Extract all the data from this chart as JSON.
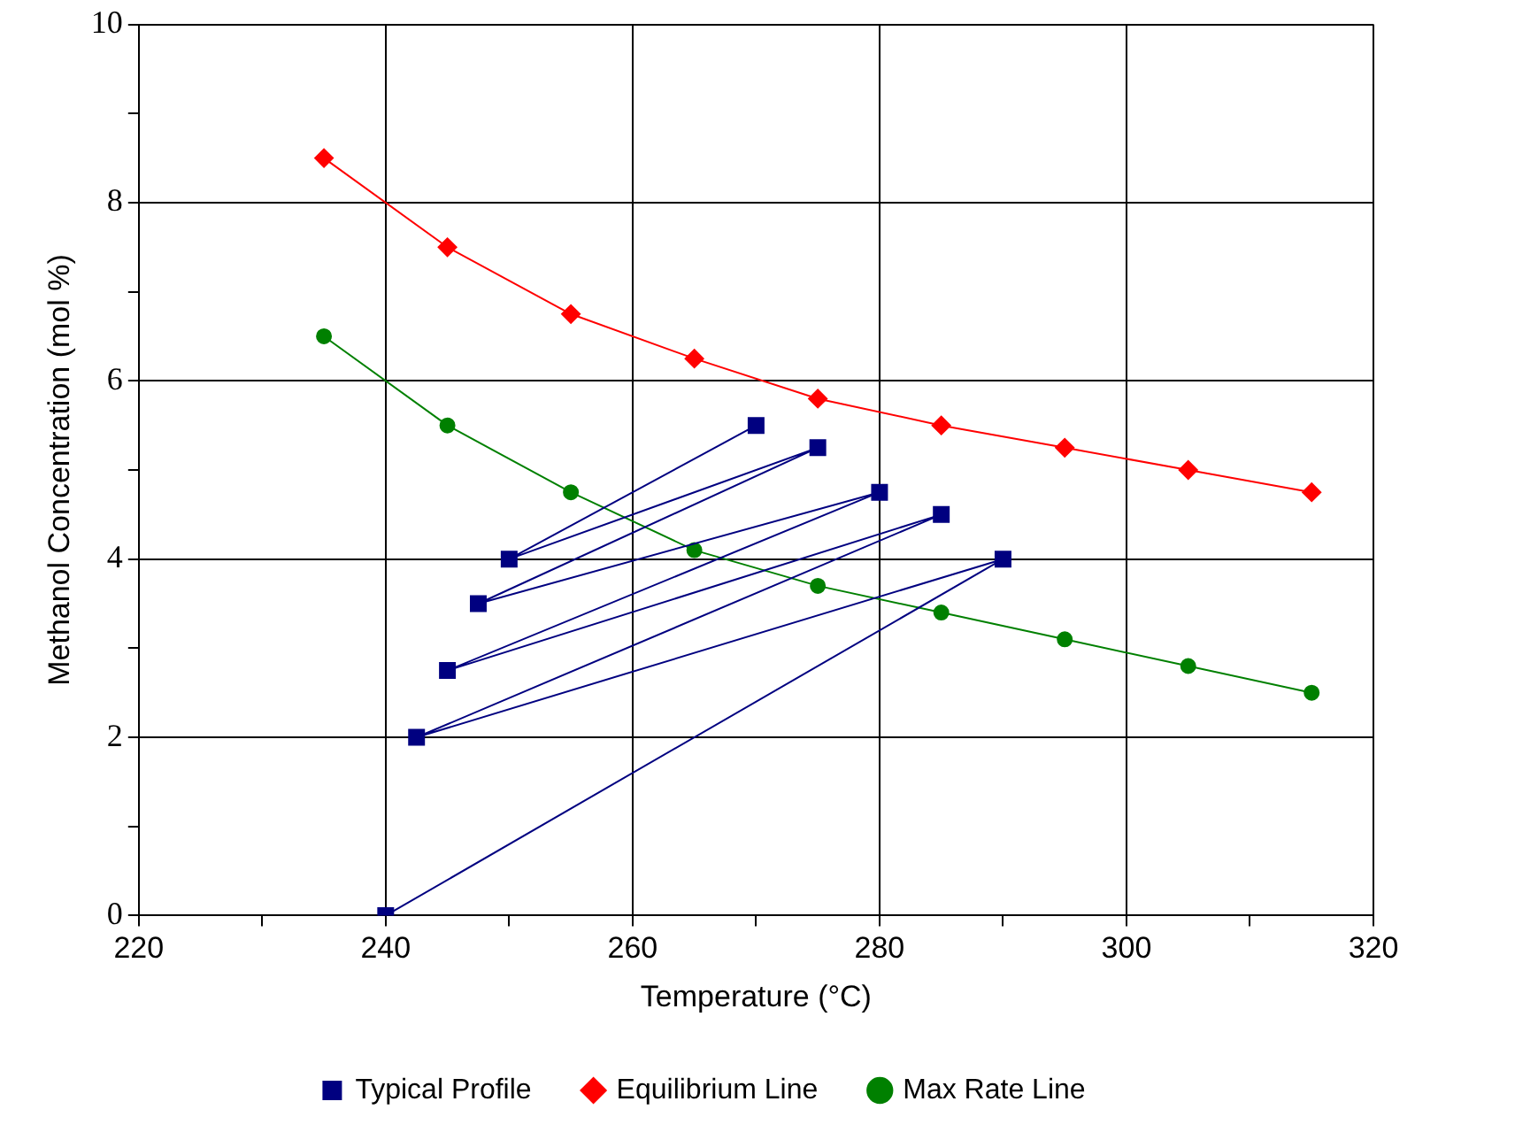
{
  "chart_data": {
    "type": "line",
    "xlabel": "Temperature (°C)",
    "ylabel": "Methanol Concentration (mol %)",
    "xlim": [
      220,
      320
    ],
    "xticks": [
      220,
      {
        "value": 230,
        "label": null
      },
      240,
      {
        "value": 250,
        "label": null
      },
      260,
      {
        "value": 270,
        "label": null
      },
      280,
      {
        "value": 290,
        "label": null
      },
      300,
      {
        "value": 310,
        "label": null
      },
      320
    ],
    "ylim": [
      0,
      10
    ],
    "yticks": [
      0,
      {
        "value": 1,
        "label": null
      },
      2,
      {
        "value": 3,
        "label": null
      },
      4,
      {
        "value": 5,
        "label": null
      },
      6,
      {
        "value": 7,
        "label": null
      },
      8,
      {
        "value": 9,
        "label": null
      },
      10
    ],
    "grid": true,
    "legend": "bottom",
    "line_style": "solid",
    "series": [
      {
        "name": "Typical Profile",
        "color": "#000080",
        "marker": "square",
        "x": [
          240,
          290,
          242.5,
          285,
          245,
          280,
          247.5,
          275,
          250,
          270
        ],
        "values": [
          0,
          4,
          2,
          4.5,
          2.75,
          4.75,
          3.5,
          5.25,
          4,
          5.5
        ]
      },
      {
        "name": "Equilibrium Line",
        "color": "#ff0000",
        "marker": "diamond",
        "x": [
          235,
          245,
          255,
          265,
          275,
          285,
          295,
          305,
          315
        ],
        "values": [
          8.5,
          7.5,
          6.75,
          6.25,
          5.8,
          5.5,
          5.25,
          5,
          4.75
        ]
      },
      {
        "name": "Max Rate Line",
        "color": "#008000",
        "marker": "circle",
        "x": [
          235,
          245,
          255,
          265,
          275,
          285,
          295,
          305,
          315
        ],
        "values": [
          6.5,
          5.5,
          4.75,
          4.1,
          3.7,
          3.4,
          3.1,
          2.8,
          2.5
        ]
      }
    ]
  }
}
